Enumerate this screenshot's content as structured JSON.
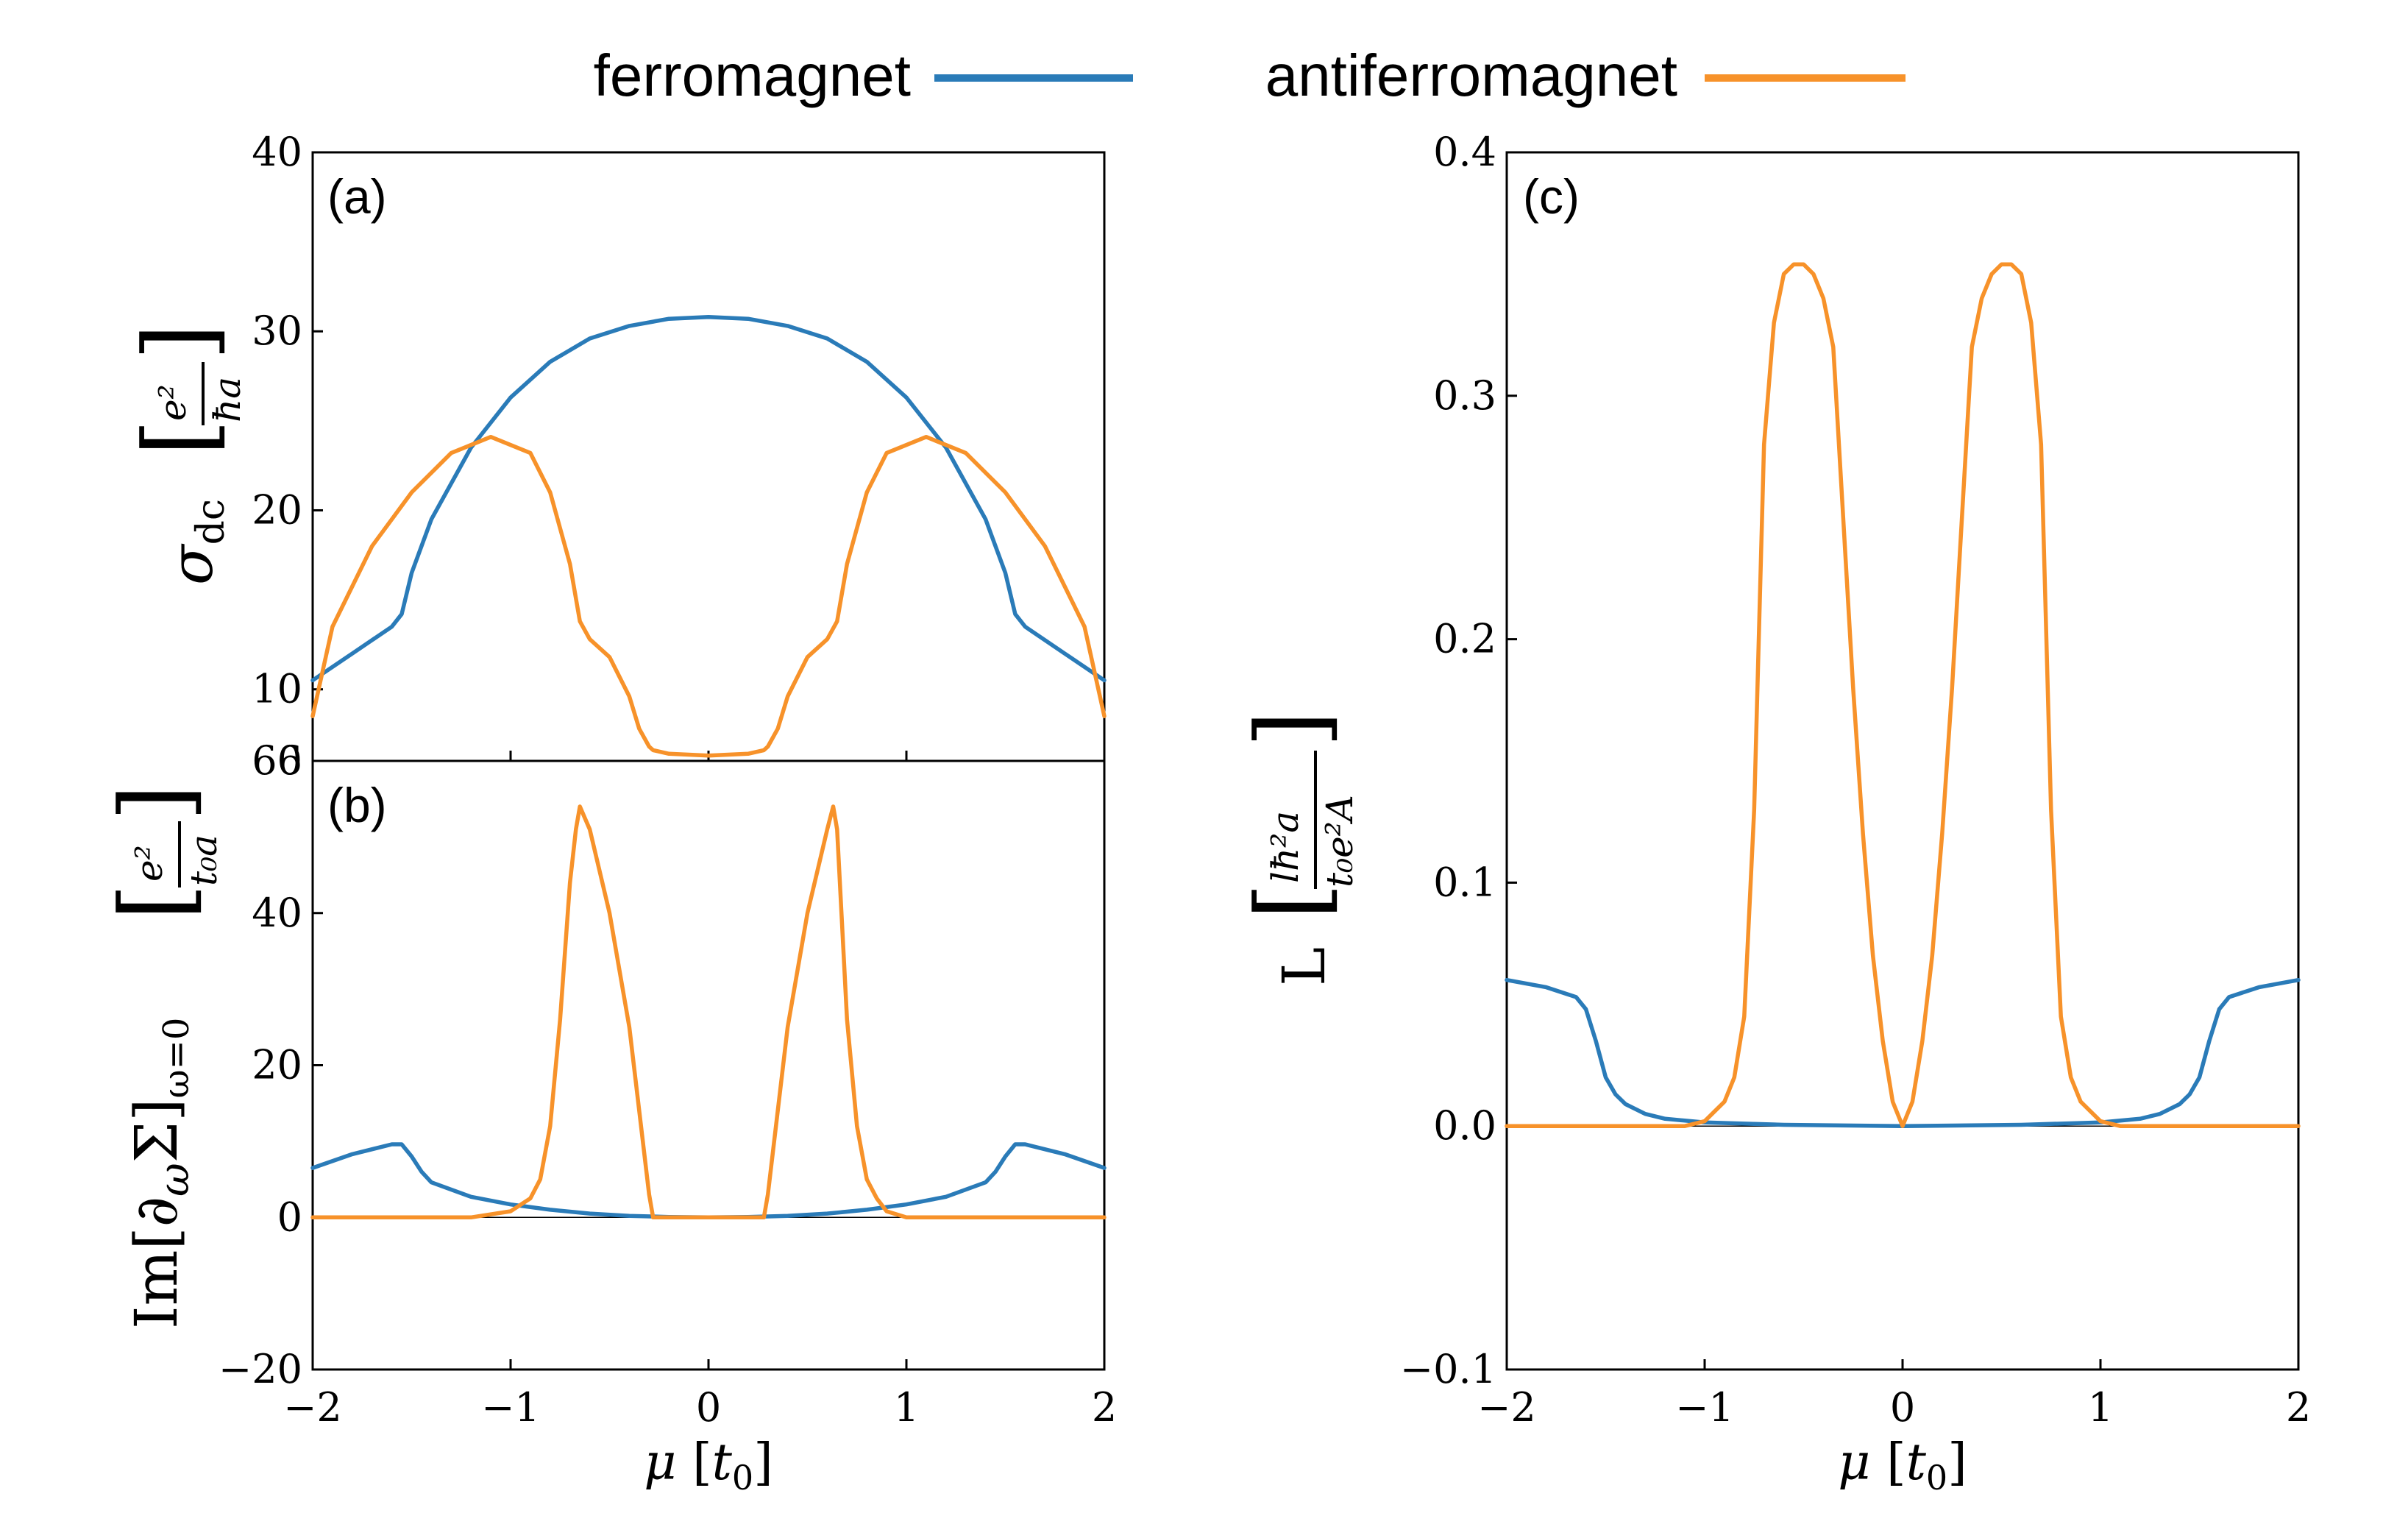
{
  "legend": {
    "items": [
      {
        "label": "ferromagnet",
        "color": "#2a7bb8"
      },
      {
        "label": "antiferromagnet",
        "color": "#f7922a"
      }
    ]
  },
  "chart_data": [
    {
      "id": "a",
      "type": "line",
      "panel_label": "(a)",
      "ylabel": "σ_dc [e²/ħa]",
      "xlim": [
        -2,
        2
      ],
      "ylim": [
        6,
        40
      ],
      "yticks": [
        10,
        20,
        30,
        40
      ],
      "ytick_labels": [
        "10",
        "20",
        "30",
        "40"
      ],
      "bottom_tick_label": "6",
      "series": [
        {
          "name": "ferromagnet",
          "color": "#2a7bb8",
          "x": [
            -2.0,
            -1.8,
            -1.6,
            -1.55,
            -1.5,
            -1.4,
            -1.2,
            -1.0,
            -0.8,
            -0.6,
            -0.4,
            -0.2,
            0.0,
            0.2,
            0.4,
            0.6,
            0.8,
            1.0,
            1.2,
            1.4,
            1.5,
            1.55,
            1.6,
            1.8,
            2.0
          ],
          "y": [
            10.5,
            12.0,
            13.5,
            14.2,
            16.5,
            19.5,
            23.5,
            26.3,
            28.3,
            29.6,
            30.3,
            30.7,
            30.8,
            30.7,
            30.3,
            29.6,
            28.3,
            26.3,
            23.5,
            19.5,
            16.5,
            14.2,
            13.5,
            12.0,
            10.5
          ]
        },
        {
          "name": "antiferromagnet",
          "color": "#f7922a",
          "x": [
            -2.0,
            -1.9,
            -1.7,
            -1.5,
            -1.3,
            -1.1,
            -0.9,
            -0.8,
            -0.7,
            -0.65,
            -0.6,
            -0.5,
            -0.4,
            -0.35,
            -0.3,
            -0.28,
            -0.2,
            0.0,
            0.2,
            0.28,
            0.3,
            0.35,
            0.4,
            0.5,
            0.6,
            0.65,
            0.7,
            0.8,
            0.9,
            1.1,
            1.3,
            1.5,
            1.7,
            1.9,
            2.0
          ],
          "y": [
            8.5,
            13.5,
            18.0,
            21.0,
            23.2,
            24.1,
            23.2,
            21.0,
            17.0,
            13.8,
            12.8,
            11.8,
            9.6,
            7.8,
            6.8,
            6.6,
            6.4,
            6.3,
            6.4,
            6.6,
            6.8,
            7.8,
            9.6,
            11.8,
            12.8,
            13.8,
            17.0,
            21.0,
            23.2,
            24.1,
            23.2,
            21.0,
            18.0,
            13.5,
            8.5
          ]
        }
      ]
    },
    {
      "id": "b",
      "type": "line",
      "panel_label": "(b)",
      "ylabel": "Im[∂ωΣ]ω=0 [e²/t₀a]",
      "xlabel": "μ [t₀]",
      "xlim": [
        -2,
        2
      ],
      "ylim": [
        -20,
        60
      ],
      "yticks": [
        -20,
        0,
        20,
        40,
        60
      ],
      "ytick_labels": [
        "−20",
        "0",
        "20",
        "40",
        "60"
      ],
      "xticks": [
        -2,
        -1,
        0,
        1,
        2
      ],
      "xtick_labels": [
        "−2",
        "−1",
        "0",
        "1",
        "2"
      ],
      "series": [
        {
          "name": "ferromagnet",
          "color": "#2a7bb8",
          "x": [
            -2.0,
            -1.8,
            -1.6,
            -1.55,
            -1.5,
            -1.45,
            -1.4,
            -1.2,
            -1.0,
            -0.8,
            -0.6,
            -0.4,
            -0.2,
            0.0,
            0.2,
            0.4,
            0.6,
            0.8,
            1.0,
            1.2,
            1.4,
            1.45,
            1.5,
            1.55,
            1.6,
            1.8,
            2.0
          ],
          "y": [
            6.5,
            8.3,
            9.6,
            9.6,
            8.0,
            6.0,
            4.6,
            2.7,
            1.7,
            1.0,
            0.5,
            0.2,
            0.05,
            0.0,
            0.05,
            0.2,
            0.5,
            1.0,
            1.7,
            2.7,
            4.6,
            6.0,
            8.0,
            9.6,
            9.6,
            8.3,
            6.5
          ]
        },
        {
          "name": "antiferromagnet",
          "color": "#f7922a",
          "x": [
            -2.0,
            -1.2,
            -1.0,
            -0.9,
            -0.85,
            -0.8,
            -0.75,
            -0.7,
            -0.67,
            -0.65,
            -0.6,
            -0.5,
            -0.4,
            -0.3,
            -0.28,
            -0.2,
            0.0,
            0.2,
            0.28,
            0.3,
            0.4,
            0.5,
            0.6,
            0.63,
            0.65,
            0.7,
            0.75,
            0.8,
            0.85,
            0.9,
            1.0,
            1.2,
            2.0
          ],
          "y": [
            0.0,
            0.0,
            0.8,
            2.5,
            5.0,
            12.0,
            26.0,
            44.0,
            51.0,
            54.0,
            51.0,
            40.0,
            25.0,
            3.0,
            0.0,
            0.0,
            0.0,
            0.0,
            0.0,
            3.0,
            25.0,
            40.0,
            51.0,
            54.0,
            51.0,
            26.0,
            12.0,
            5.0,
            2.5,
            0.8,
            0.0,
            0.0,
            0.0
          ]
        }
      ]
    },
    {
      "id": "c",
      "type": "line",
      "panel_label": "(c)",
      "ylabel": "L [lħ²a/t₀e²A]",
      "xlabel": "μ [t₀]",
      "xlim": [
        -2,
        2
      ],
      "ylim": [
        -0.1,
        0.4
      ],
      "yticks": [
        -0.1,
        0.0,
        0.1,
        0.2,
        0.3,
        0.4
      ],
      "ytick_labels": [
        "−0.1",
        "0.0",
        "0.1",
        "0.2",
        "0.3",
        "0.4"
      ],
      "xticks": [
        -2,
        -1,
        0,
        1,
        2
      ],
      "xtick_labels": [
        "−2",
        "−1",
        "0",
        "1",
        "2"
      ],
      "series": [
        {
          "name": "ferromagnet",
          "color": "#2a7bb8",
          "x": [
            -2.0,
            -1.8,
            -1.65,
            -1.6,
            -1.55,
            -1.5,
            -1.45,
            -1.4,
            -1.3,
            -1.2,
            -1.0,
            -0.6,
            0.0,
            0.6,
            1.0,
            1.2,
            1.3,
            1.4,
            1.45,
            1.5,
            1.55,
            1.6,
            1.65,
            1.8,
            2.0
          ],
          "y": [
            0.06,
            0.057,
            0.053,
            0.048,
            0.035,
            0.02,
            0.013,
            0.009,
            0.005,
            0.003,
            0.0015,
            0.0005,
            0.0,
            0.0005,
            0.0015,
            0.003,
            0.005,
            0.009,
            0.013,
            0.02,
            0.035,
            0.048,
            0.053,
            0.057,
            0.06
          ]
        },
        {
          "name": "antiferromagnet",
          "color": "#f7922a",
          "x": [
            -2.0,
            -1.1,
            -1.0,
            -0.9,
            -0.85,
            -0.8,
            -0.75,
            -0.7,
            -0.65,
            -0.6,
            -0.55,
            -0.5,
            -0.45,
            -0.4,
            -0.35,
            -0.3,
            -0.25,
            -0.2,
            -0.15,
            -0.1,
            -0.05,
            0.0,
            0.05,
            0.1,
            0.15,
            0.2,
            0.25,
            0.3,
            0.35,
            0.4,
            0.45,
            0.5,
            0.55,
            0.6,
            0.65,
            0.7,
            0.75,
            0.8,
            0.85,
            0.9,
            1.0,
            1.1,
            2.0
          ],
          "y": [
            0.0,
            0.0,
            0.002,
            0.01,
            0.02,
            0.045,
            0.13,
            0.28,
            0.33,
            0.35,
            0.354,
            0.354,
            0.35,
            0.34,
            0.32,
            0.25,
            0.18,
            0.12,
            0.07,
            0.035,
            0.01,
            0.0,
            0.01,
            0.035,
            0.07,
            0.12,
            0.18,
            0.25,
            0.32,
            0.34,
            0.35,
            0.354,
            0.354,
            0.35,
            0.33,
            0.28,
            0.13,
            0.045,
            0.02,
            0.01,
            0.002,
            0.0,
            0.0
          ]
        }
      ]
    }
  ]
}
